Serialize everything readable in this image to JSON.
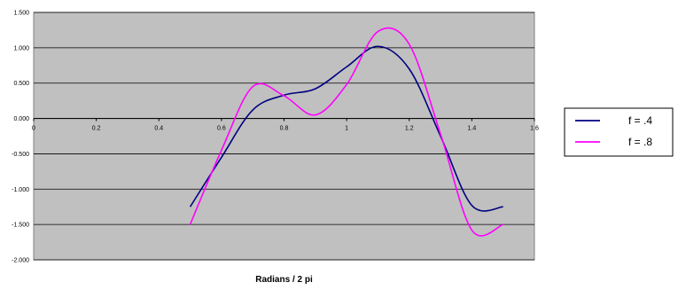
{
  "chart_data": {
    "type": "line",
    "title": "",
    "xlabel": "Radians / 2 pi",
    "ylabel": "",
    "xlim": [
      0,
      1.6
    ],
    "ylim": [
      -2.0,
      1.5
    ],
    "x_ticks": [
      0,
      0.2,
      0.4,
      0.6,
      0.8,
      1,
      1.2,
      1.4,
      1.6
    ],
    "x_tick_labels": [
      "0",
      "0.2",
      "0.4",
      "0.6",
      "0.8",
      "1",
      "1.2",
      "1.4",
      "1.6"
    ],
    "y_ticks": [
      1.5,
      1.0,
      0.5,
      0.0,
      -0.5,
      -1.0,
      -1.5,
      -2.0
    ],
    "y_tick_labels": [
      "1.500",
      "1.000",
      "0.500",
      "0.000",
      "-0.500",
      "-1.000",
      "-1.500",
      "-2.000"
    ],
    "grid": "horizontal",
    "plot_background": "#c0c0c0",
    "legend_position": "right",
    "series": [
      {
        "name": "f = .4",
        "color": "#000080",
        "x": [
          0.5,
          0.6,
          0.7,
          0.8,
          0.9,
          1.0,
          1.1,
          1.2,
          1.3,
          1.4,
          1.5
        ],
        "values": [
          -1.25,
          -0.55,
          0.12,
          0.33,
          0.42,
          0.73,
          1.02,
          0.7,
          -0.25,
          -1.23,
          -1.25
        ]
      },
      {
        "name": "f = .8",
        "color": "#ff00ff",
        "x": [
          0.5,
          0.6,
          0.7,
          0.8,
          0.9,
          1.0,
          1.1,
          1.2,
          1.3,
          1.4,
          1.5
        ],
        "values": [
          -1.5,
          -0.45,
          0.45,
          0.32,
          0.05,
          0.48,
          1.23,
          1.05,
          -0.22,
          -1.58,
          -1.5
        ]
      }
    ]
  }
}
